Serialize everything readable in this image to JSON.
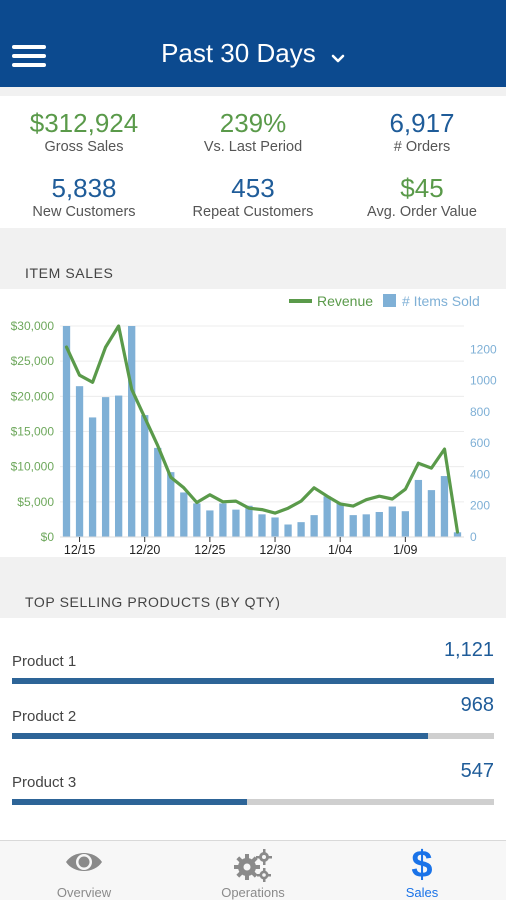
{
  "header": {
    "title": "Past 30 Days",
    "menu_icon": "hamburger-icon",
    "dropdown_icon": "chevron-down-icon"
  },
  "stats": [
    {
      "value": "$312,924",
      "label": "Gross Sales",
      "color": "#5a9a4a"
    },
    {
      "value": "239%",
      "label": "Vs. Last Period",
      "color": "#5a9a4a"
    },
    {
      "value": "6,917",
      "label": "# Orders",
      "color": "#1f5c99"
    },
    {
      "value": "5,838",
      "label": "New Customers",
      "color": "#1f5c99"
    },
    {
      "value": "453",
      "label": "Repeat Customers",
      "color": "#1f5c99"
    },
    {
      "value": "$45",
      "label": "Avg. Order Value",
      "color": "#5a9a4a"
    }
  ],
  "item_sales": {
    "section_title": "ITEM SALES"
  },
  "chart_data": {
    "type": "bar",
    "title": "",
    "legend": [
      "Revenue",
      "# Items Sold"
    ],
    "legend_position": "top-right",
    "x": [
      "12/14",
      "12/15",
      "12/16",
      "12/17",
      "12/18",
      "12/19",
      "12/20",
      "12/21",
      "12/22",
      "12/23",
      "12/24",
      "12/25",
      "12/26",
      "12/27",
      "12/28",
      "12/29",
      "12/30",
      "12/31",
      "1/01",
      "1/02",
      "1/03",
      "1/04",
      "1/05",
      "1/06",
      "1/07",
      "1/08",
      "1/09",
      "1/10",
      "1/11",
      "1/12",
      "1/13"
    ],
    "x_tick_labels": [
      "12/15",
      "12/20",
      "12/25",
      "12/30",
      "1/04",
      "1/09"
    ],
    "y_left_ticks": [
      "$0",
      "$5,000",
      "$10,000",
      "$15,000",
      "$20,000",
      "$25,000",
      "$30,000"
    ],
    "y_left_range": [
      0,
      30000
    ],
    "y_right_ticks": [
      "0",
      "200",
      "400",
      "600",
      "800",
      "1000",
      "1200"
    ],
    "y_right_range": [
      0,
      1350
    ],
    "series": [
      {
        "name": "# Items Sold",
        "type": "bar",
        "axis": "right",
        "color": "#7fb0d6",
        "values": [
          1350,
          965,
          765,
          895,
          905,
          1350,
          780,
          570,
          415,
          285,
          215,
          170,
          215,
          175,
          200,
          145,
          125,
          80,
          95,
          140,
          260,
          215,
          140,
          145,
          160,
          195,
          165,
          365,
          300,
          390,
          30
        ]
      },
      {
        "name": "Revenue",
        "type": "line",
        "axis": "left",
        "color": "#5a9a4a",
        "values": [
          27000,
          23000,
          22000,
          27000,
          30000,
          21000,
          17000,
          13000,
          8500,
          7000,
          4900,
          6000,
          5000,
          5100,
          4100,
          3900,
          3400,
          4100,
          5100,
          7000,
          5800,
          4700,
          4400,
          5300,
          5800,
          5400,
          6800,
          10500,
          9800,
          12500,
          700
        ]
      }
    ],
    "grid": true
  },
  "top_products": {
    "section_title": "TOP SELLING PRODUCTS (BY QTY)",
    "items": [
      {
        "name": "Product 1",
        "qty": "1,121",
        "fraction": 1.0
      },
      {
        "name": "Product 2",
        "qty": "968",
        "fraction": 0.864
      },
      {
        "name": "Product 3",
        "qty": "547",
        "fraction": 0.488
      }
    ]
  },
  "tabbar": {
    "tabs": [
      {
        "label": "Overview",
        "icon": "eye-icon",
        "active": false
      },
      {
        "label": "Operations",
        "icon": "gears-icon",
        "active": false
      },
      {
        "label": "Sales",
        "icon": "dollar-icon",
        "active": true
      }
    ],
    "active_color": "#1a73e8",
    "inactive_color": "#8a8a8a"
  }
}
